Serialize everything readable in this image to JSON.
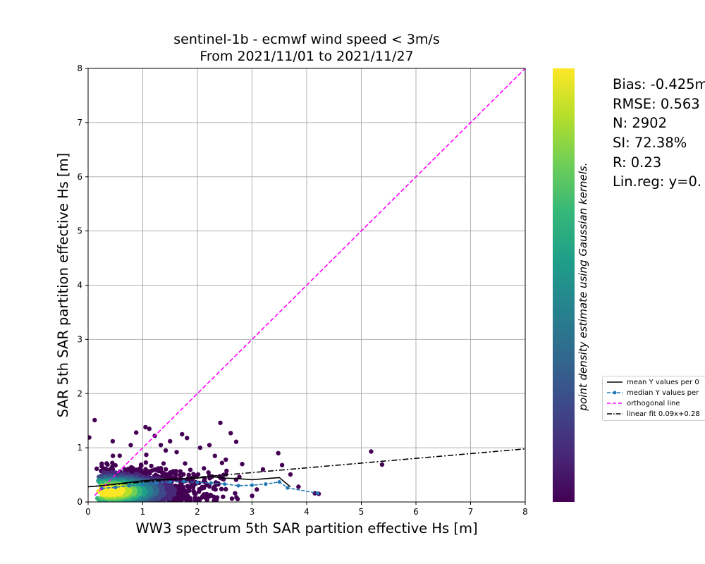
{
  "chart_data": {
    "type": "scatter",
    "title": "sentinel-1b - ecmwf wind speed < 3m/s",
    "subtitle": "From 2021/11/01 to 2021/11/27",
    "xlabel": "WW3 spectrum 5th SAR partition effective Hs [m]",
    "ylabel": "SAR 5th SAR partition effective Hs [m]",
    "xlim": [
      0,
      8
    ],
    "ylim": [
      0,
      8
    ],
    "xticks": [
      "0",
      "1",
      "2",
      "3",
      "4",
      "5",
      "6",
      "7",
      "8"
    ],
    "yticks": [
      "0",
      "1",
      "2",
      "3",
      "4",
      "5",
      "6",
      "7",
      "8"
    ],
    "grid": true,
    "colorbar_label": "point density estimate using Gaussian kernels.",
    "stats": [
      "Bias: -0.425m",
      "RMSE: 0.563",
      "N: 2902",
      "SI: 72.38%",
      "R: 0.23",
      "Lin.reg: y=0."
    ],
    "legend": {
      "placement": "right, outside plot",
      "entries": [
        "mean Y values per 0",
        "median Y values per",
        "orthogonal line",
        "linear fit 0.09x+0.28"
      ]
    },
    "series": [
      {
        "name": "mean Y values per 0",
        "color": "#000000",
        "x": [
          0.0,
          0.25,
          0.5,
          0.75,
          1.0,
          1.25,
          1.5,
          1.75,
          2.0,
          2.25,
          2.5,
          2.75,
          3.0,
          3.25,
          3.5,
          3.7
        ],
        "y": [
          0.28,
          0.3,
          0.33,
          0.36,
          0.39,
          0.41,
          0.42,
          0.43,
          0.44,
          0.47,
          0.44,
          0.43,
          0.41,
          0.43,
          0.45,
          0.28
        ]
      },
      {
        "name": "median Y values per",
        "color": "#1f77b4",
        "x": [
          0.25,
          0.5,
          0.75,
          1.0,
          1.25,
          1.5,
          1.75,
          2.0,
          2.25,
          2.5,
          2.75,
          3.0,
          3.25,
          3.5,
          3.65,
          4.2
        ],
        "y": [
          0.25,
          0.27,
          0.3,
          0.32,
          0.35,
          0.37,
          0.38,
          0.36,
          0.35,
          0.33,
          0.3,
          0.31,
          0.33,
          0.37,
          0.26,
          0.16
        ]
      },
      {
        "name": "orthogonal line",
        "color": "#ff00ff",
        "x": [
          0.12,
          8.0
        ],
        "y": [
          0.12,
          8.0
        ]
      },
      {
        "name": "linear fit 0.09x+0.28",
        "color": "#000000",
        "x": [
          0.0,
          8.0
        ],
        "y": [
          0.28,
          0.98
        ]
      }
    ],
    "outliers": {
      "x": [
        0.02,
        0.12,
        0.45,
        0.78,
        0.88,
        1.05,
        1.12,
        1.22,
        1.33,
        1.42,
        1.5,
        1.72,
        1.81,
        2.05,
        2.22,
        2.32,
        2.42,
        2.52,
        2.61,
        2.71,
        2.82,
        3.2,
        3.48,
        3.55,
        3.85,
        4.15,
        4.22,
        5.18,
        5.38,
        2.45,
        2.12,
        1.62
      ],
      "y": [
        1.19,
        1.51,
        1.12,
        1.05,
        1.28,
        1.38,
        1.35,
        1.22,
        1.05,
        0.95,
        1.12,
        1.25,
        1.18,
        1.0,
        1.05,
        0.85,
        1.46,
        0.78,
        1.27,
        1.11,
        0.7,
        0.6,
        0.9,
        0.68,
        0.28,
        0.16,
        0.15,
        0.93,
        0.69,
        0.72,
        0.62,
        0.92
      ]
    },
    "colormap": [
      "#440154",
      "#482878",
      "#3e4989",
      "#31688e",
      "#26828e",
      "#1f9e89",
      "#35b779",
      "#6ece58",
      "#b5de2b",
      "#fde725"
    ]
  }
}
